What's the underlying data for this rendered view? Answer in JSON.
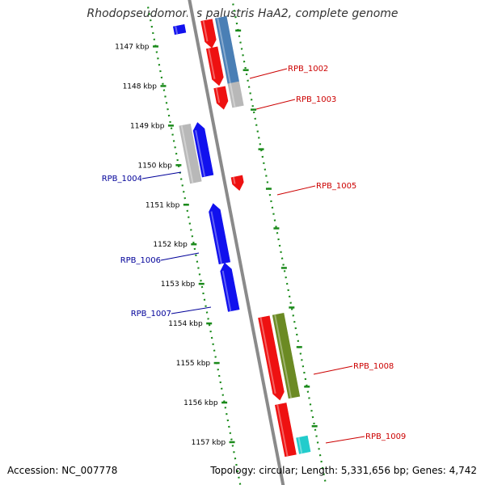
{
  "title": "Rhodopseudomonas palustris HaA2, complete genome",
  "accession_text": "Accession: NC_007778",
  "summary_text": "Topology: circular; Length: 5,331,656 bp; Genes: 4,742",
  "colors": {
    "background": "#ffffff",
    "backbone": "#8a8a8a",
    "ruler_dots": "#1a8a1a",
    "forward_label": "#cc0000",
    "reverse_label": "#000099",
    "cds_red": "#ee1111",
    "cds_blue": "#1111ee",
    "cds_steelblue": "#4a7fb5",
    "cds_gray": "#b8b8b8",
    "cds_olive": "#6b8a23",
    "cds_cyan": "#22cccc"
  },
  "ruler": {
    "unit": "kbp",
    "positions": [
      1147,
      1148,
      1149,
      1150,
      1151,
      1152,
      1153,
      1154,
      1155,
      1156,
      1157
    ]
  },
  "tick_labels": [
    "1147 kbp",
    "1148 kbp",
    "1149 kbp",
    "1150 kbp",
    "1151 kbp",
    "1152 kbp",
    "1153 kbp",
    "1154 kbp",
    "1155 kbp",
    "1156 kbp",
    "1157 kbp"
  ],
  "gene_labels": [
    {
      "text": "RPB_1002",
      "strand": "forward"
    },
    {
      "text": "RPB_1003",
      "strand": "forward"
    },
    {
      "text": "RPB_1004",
      "strand": "reverse"
    },
    {
      "text": "RPB_1005",
      "strand": "forward"
    },
    {
      "text": "RPB_1006",
      "strand": "reverse"
    },
    {
      "text": "RPB_1007",
      "strand": "reverse"
    },
    {
      "text": "RPB_1008",
      "strand": "forward"
    },
    {
      "text": "RPB_1009",
      "strand": "forward"
    }
  ],
  "features": [
    {
      "name": "feature-1",
      "track": "fwd1",
      "start": 1146.6,
      "end": 1147.3,
      "color": "red",
      "arrow": "forward"
    },
    {
      "name": "feature-2",
      "track": "fwd1",
      "start": 1147.3,
      "end": 1148.25,
      "color": "red",
      "arrow": "forward"
    },
    {
      "name": "feature-3",
      "track": "fwd1",
      "start": 1148.3,
      "end": 1148.85,
      "color": "red",
      "arrow": "forward"
    },
    {
      "name": "feature-4",
      "track": "fwd2",
      "start": 1146.6,
      "end": 1148.25,
      "color": "steelblue",
      "arrow": "none"
    },
    {
      "name": "feature-5",
      "track": "fwd2",
      "start": 1148.25,
      "end": 1148.85,
      "color": "gray",
      "arrow": "none"
    },
    {
      "name": "feature-6",
      "track": "rev1",
      "start": 1149.05,
      "end": 1150.4,
      "color": "blue",
      "arrow": "reverse"
    },
    {
      "name": "feature-7",
      "track": "rev2",
      "start": 1149.05,
      "end": 1150.5,
      "color": "gray",
      "arrow": "none"
    },
    {
      "name": "feature-8",
      "track": "fwd1",
      "start": 1150.55,
      "end": 1150.9,
      "color": "red",
      "arrow": "forward"
    },
    {
      "name": "feature-9",
      "track": "rev1",
      "start": 1151.1,
      "end": 1152.6,
      "color": "blue",
      "arrow": "reverse"
    },
    {
      "name": "feature-10",
      "track": "rev1",
      "start": 1152.6,
      "end": 1153.8,
      "color": "blue",
      "arrow": "reverse"
    },
    {
      "name": "feature-11",
      "track": "fwd1",
      "start": 1154.1,
      "end": 1156.2,
      "color": "red",
      "arrow": "forward"
    },
    {
      "name": "feature-12",
      "track": "fwd2",
      "start": 1154.1,
      "end": 1156.2,
      "color": "olive",
      "arrow": "none"
    },
    {
      "name": "feature-13",
      "track": "fwd1",
      "start": 1156.3,
      "end": 1157.6,
      "color": "red",
      "arrow": "none"
    },
    {
      "name": "feature-14",
      "track": "fwd2",
      "start": 1157.2,
      "end": 1157.6,
      "color": "cyan",
      "arrow": "none"
    },
    {
      "name": "feature-15",
      "track": "rev1",
      "start": 1146.6,
      "end": 1146.8,
      "color": "blue",
      "arrow": "none"
    }
  ]
}
